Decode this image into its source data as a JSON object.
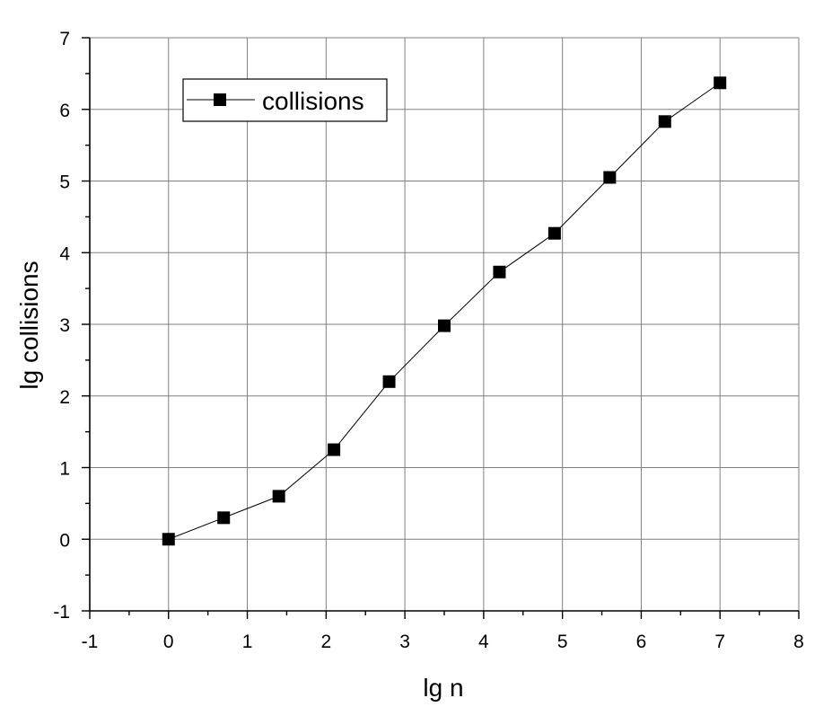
{
  "chart_data": {
    "type": "line",
    "xlabel": "lg n",
    "ylabel": "lg collisions",
    "xlim": [
      -1,
      8
    ],
    "ylim": [
      -1,
      7
    ],
    "x_ticks": [
      "-1",
      "0",
      "1",
      "2",
      "3",
      "4",
      "5",
      "6",
      "7",
      "8"
    ],
    "y_ticks": [
      "-1",
      "0",
      "1",
      "2",
      "3",
      "4",
      "5",
      "6",
      "7"
    ],
    "grid": true,
    "legend_position": "top-left",
    "marker": "square",
    "color": "#000000",
    "series": [
      {
        "name": "collisions",
        "x": [
          0,
          0.7,
          1.4,
          2.1,
          2.8,
          3.5,
          4.2,
          4.9,
          5.6,
          6.3,
          7.0
        ],
        "y": [
          0,
          0.3,
          0.6,
          1.25,
          2.2,
          2.98,
          3.73,
          4.27,
          5.05,
          5.83,
          6.37
        ]
      }
    ]
  }
}
